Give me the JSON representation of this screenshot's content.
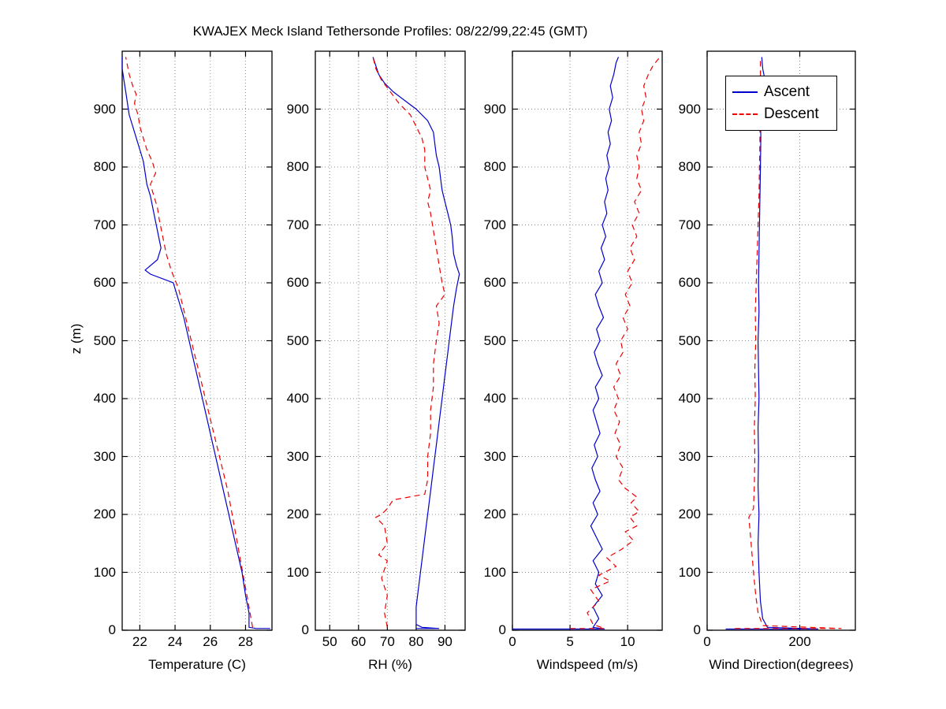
{
  "chart_data": {
    "type": "line",
    "title": "KWAJEX Meck Island Tethersonde Profiles: 08/22/99,22:45 (GMT)",
    "ylabel": "z (m)",
    "ylim": [
      0,
      1000
    ],
    "yticks": [
      0,
      100,
      200,
      300,
      400,
      500,
      600,
      700,
      800,
      900
    ],
    "grid": true,
    "legend": {
      "position": "top-right-of-wind-direction-panel",
      "entries": [
        {
          "label": "Ascent",
          "color": "#0000cc",
          "style": "solid"
        },
        {
          "label": "Descent",
          "color": "#ee0000",
          "style": "dashed"
        }
      ]
    },
    "panels": [
      {
        "xlabel": "Temperature (C)",
        "xlim": [
          21,
          29.5
        ],
        "xticks": [
          22,
          24,
          26,
          28
        ],
        "series": {
          "ascent": {
            "x": [
              29.4,
              28.6,
              28.2,
              28.2,
              28.0,
              27.8,
              27.5,
              27.2,
              26.9,
              26.6,
              26.3,
              26.0,
              25.7,
              25.4,
              25.1,
              24.8,
              24.5,
              24.2,
              23.9,
              22.6,
              22.3,
              23.0,
              23.2,
              23.0,
              22.8,
              22.6,
              22.4,
              22.3,
              22.2,
              22.0,
              21.8,
              21.6,
              21.4,
              21.3,
              21.2,
              21.1,
              21.0,
              21.0
            ],
            "z": [
              3,
              3,
              5,
              30,
              60,
              100,
              140,
              180,
              220,
              260,
              300,
              340,
              380,
              420,
              460,
              500,
              540,
              570,
              600,
              615,
              622,
              640,
              660,
              690,
              720,
              750,
              770,
              790,
              810,
              830,
              850,
              870,
              890,
              910,
              930,
              950,
              970,
              990
            ]
          },
          "descent": {
            "x": [
              28.4,
              28.2,
              27.9,
              27.6,
              27.3,
              27.0,
              26.6,
              26.2,
              25.8,
              25.4,
              25.0,
              24.6,
              24.2,
              23.8,
              23.5,
              23.3,
              23.1,
              23.0,
              22.8,
              22.6,
              22.9,
              22.7,
              22.4,
              22.2,
              22.0,
              21.9,
              21.7,
              21.8,
              21.6,
              21.4,
              21.3,
              21.2
            ],
            "z": [
              5,
              40,
              90,
              140,
              190,
              240,
              290,
              340,
              390,
              440,
              490,
              540,
              590,
              620,
              650,
              680,
              710,
              730,
              750,
              770,
              790,
              810,
              830,
              850,
              870,
              890,
              910,
              925,
              940,
              960,
              975,
              990
            ]
          }
        }
      },
      {
        "xlabel": "RH (%)",
        "xlim": [
          45,
          97
        ],
        "xticks": [
          50,
          60,
          70,
          80,
          90
        ],
        "series": {
          "ascent": {
            "x": [
              80,
              88,
              82,
              80,
              80,
              81,
              82,
              83,
              84,
              85,
              86,
              87,
              88,
              89,
              90,
              91,
              92,
              93,
              94,
              95,
              94,
              93,
              92.5,
              92,
              91,
              90,
              89,
              88.5,
              88,
              87,
              86.5,
              86,
              84,
              80,
              76,
              72,
              69,
              67,
              66,
              65
            ],
            "z": [
              3,
              3,
              5,
              10,
              40,
              80,
              120,
              160,
              200,
              240,
              280,
              320,
              360,
              400,
              440,
              480,
              520,
              560,
              590,
              615,
              630,
              650,
              680,
              700,
              720,
              740,
              760,
              780,
              800,
              820,
              840,
              860,
              880,
              900,
              915,
              930,
              945,
              960,
              975,
              990
            ]
          },
          "descent": {
            "x": [
              70,
              69,
              70,
              68,
              70,
              67,
              70,
              69,
              66,
              68,
              70,
              72,
              83,
              84,
              84,
              85,
              85,
              86,
              86,
              87,
              88,
              87,
              90,
              89,
              88,
              87,
              86,
              85,
              84,
              85,
              84,
              83,
              83,
              82,
              80,
              78,
              74,
              71,
              68,
              66,
              65
            ],
            "z": [
              5,
              30,
              60,
              90,
              120,
              130,
              150,
              180,
              195,
              200,
              210,
              225,
              235,
              260,
              300,
              340,
              380,
              420,
              460,
              500,
              530,
              560,
              580,
              600,
              630,
              660,
              690,
              720,
              740,
              760,
              780,
              800,
              830,
              850,
              870,
              890,
              910,
              930,
              950,
              970,
              990
            ]
          }
        }
      },
      {
        "xlabel": "Windspeed (m/s)",
        "xlim": [
          0,
          13
        ],
        "xticks": [
          0,
          5,
          10
        ],
        "series": {
          "ascent": {
            "x": [
              0,
              8,
              7,
              7.5,
              7,
              7.8,
              7.2,
              7.5,
              7,
              7.8,
              7.3,
              6.8,
              7.4,
              7,
              7.6,
              7.2,
              6.9,
              7.4,
              7.1,
              7.6,
              7.3,
              7,
              7.5,
              7.2,
              7.8,
              7.4,
              7.1,
              7.6,
              7.3,
              7.9,
              7.5,
              7.2,
              7.8,
              7.5,
              8,
              7.7,
              8.1,
              7.8,
              8.2,
              8,
              8.3,
              8.1,
              8.4,
              8.2,
              8.5,
              8.3,
              8.6,
              8.4,
              8.7,
              8.5,
              8.8,
              9,
              9.2
            ],
            "z": [
              2,
              2,
              5,
              20,
              40,
              60,
              80,
              100,
              120,
              140,
              160,
              180,
              200,
              220,
              240,
              260,
              280,
              300,
              320,
              340,
              360,
              380,
              400,
              420,
              440,
              460,
              480,
              500,
              520,
              540,
              560,
              580,
              600,
              620,
              640,
              660,
              680,
              700,
              720,
              740,
              760,
              780,
              800,
              820,
              840,
              860,
              880,
              900,
              920,
              940,
              960,
              980,
              990
            ]
          },
          "descent": {
            "x": [
              5,
              8,
              7,
              6.5,
              7.5,
              6.8,
              8.5,
              7.5,
              9,
              8.2,
              9.5,
              10.5,
              9.8,
              10.8,
              10.2,
              11,
              10.3,
              10.8,
              9.8,
              9.2,
              9.6,
              9.0,
              9.4,
              8.9,
              9.3,
              8.8,
              9.2,
              8.8,
              9.4,
              9.0,
              9.6,
              9.4,
              10.0,
              9.6,
              10.2,
              9.8,
              10.4,
              10.0,
              10.6,
              10.2,
              10.8,
              10.4,
              11.0,
              10.6,
              11.2,
              10.8,
              11.0,
              10.8,
              11.2,
              11.0,
              11.4,
              11.2,
              11.6,
              11.4,
              11.8,
              12.2,
              12.8
            ],
            "z": [
              3,
              3,
              10,
              30,
              50,
              70,
              85,
              95,
              110,
              125,
              140,
              155,
              170,
              180,
              195,
              205,
              220,
              230,
              245,
              260,
              280,
              300,
              320,
              340,
              360,
              380,
              400,
              420,
              440,
              460,
              480,
              500,
              520,
              540,
              560,
              580,
              600,
              620,
              640,
              660,
              680,
              700,
              720,
              740,
              760,
              780,
              800,
              820,
              840,
              860,
              880,
              900,
              920,
              940,
              960,
              975,
              990
            ]
          }
        }
      },
      {
        "xlabel": "Wind Direction(degrees)",
        "xlim": [
          0,
          320
        ],
        "xticks": [
          0,
          200
        ],
        "series": {
          "ascent": {
            "x": [
              40,
              240,
              130,
              120,
              115,
              112,
              110,
              112,
              110,
              111,
              110,
              112,
              111,
              110,
              112,
              111,
              112,
              113,
              114,
              115,
              116,
              115,
              118,
              125,
              120,
              118
            ],
            "z": [
              2,
              2,
              5,
              20,
              50,
              100,
              150,
              200,
              250,
              300,
              350,
              400,
              450,
              500,
              550,
              600,
              650,
              700,
              750,
              800,
              850,
              900,
              930,
              950,
              970,
              990
            ]
          },
          "descent": {
            "x": [
              60,
              290,
              120,
              110,
              105,
              100,
              95,
              90,
              100,
              102,
              103,
              102,
              104,
              103,
              105,
              104,
              106,
              108,
              110,
              112,
              113,
              114,
              114,
              115,
              115
            ],
            "z": [
              3,
              3,
              8,
              30,
              60,
              100,
              150,
              195,
              210,
              250,
              300,
              350,
              400,
              450,
              500,
              550,
              600,
              650,
              700,
              750,
              800,
              850,
              900,
              950,
              990
            ]
          }
        }
      }
    ]
  }
}
